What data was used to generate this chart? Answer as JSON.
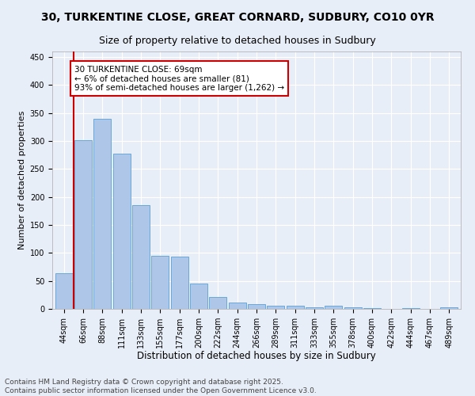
{
  "title_line1": "30, TURKENTINE CLOSE, GREAT CORNARD, SUDBURY, CO10 0YR",
  "title_line2": "Size of property relative to detached houses in Sudbury",
  "xlabel": "Distribution of detached houses by size in Sudbury",
  "ylabel": "Number of detached properties",
  "bar_color": "#aec6e8",
  "bar_edge_color": "#5a9fd4",
  "background_color": "#e8eef7",
  "grid_color": "#ffffff",
  "categories": [
    "44sqm",
    "66sqm",
    "88sqm",
    "111sqm",
    "133sqm",
    "155sqm",
    "177sqm",
    "200sqm",
    "222sqm",
    "244sqm",
    "266sqm",
    "289sqm",
    "311sqm",
    "333sqm",
    "355sqm",
    "378sqm",
    "400sqm",
    "422sqm",
    "444sqm",
    "467sqm",
    "489sqm"
  ],
  "values": [
    63,
    302,
    340,
    278,
    185,
    95,
    93,
    46,
    21,
    11,
    8,
    5,
    5,
    3,
    5,
    3,
    1,
    0,
    2,
    0,
    3
  ],
  "annotation_text": "30 TURKENTINE CLOSE: 69sqm\n← 6% of detached houses are smaller (81)\n93% of semi-detached houses are larger (1,262) →",
  "annotation_box_color": "#ffffff",
  "annotation_box_edge_color": "#cc0000",
  "vline_color": "#cc0000",
  "vline_x": 0.5,
  "ylim": [
    0,
    460
  ],
  "yticks": [
    0,
    50,
    100,
    150,
    200,
    250,
    300,
    350,
    400,
    450
  ],
  "footer_line1": "Contains HM Land Registry data © Crown copyright and database right 2025.",
  "footer_line2": "Contains public sector information licensed under the Open Government Licence v3.0.",
  "title_fontsize": 10,
  "subtitle_fontsize": 9,
  "xlabel_fontsize": 8.5,
  "ylabel_fontsize": 8,
  "tick_fontsize": 7,
  "annotation_fontsize": 7.5,
  "footer_fontsize": 6.5
}
